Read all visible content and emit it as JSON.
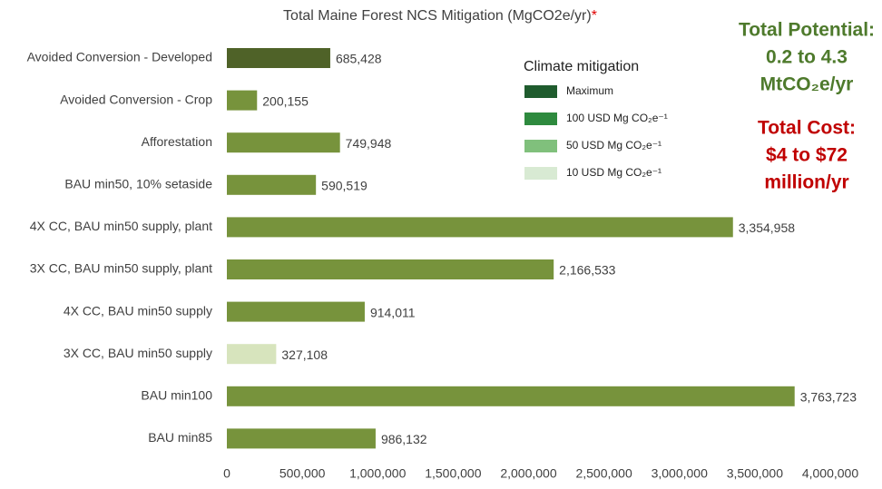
{
  "chart_data": {
    "type": "bar",
    "orientation": "horizontal",
    "title": "Total Maine Forest NCS Mitigation (MgCO2e/yr)",
    "title_mark": "*",
    "categories": [
      "Avoided Conversion - Developed",
      "Avoided Conversion - Crop",
      "Afforestation",
      "BAU min50, 10% setaside",
      "4X CC, BAU min50 supply, plant",
      "3X CC, BAU min50 supply, plant",
      "4X CC, BAU min50 supply",
      "3X CC, BAU min50 supply",
      "BAU min100",
      "BAU min85"
    ],
    "values": [
      685428,
      200155,
      749948,
      590519,
      3354958,
      2166533,
      914011,
      327108,
      3763723,
      986132
    ],
    "value_labels": [
      "685,428",
      "200,155",
      "749,948",
      "590,519",
      "3,354,958",
      "2,166,533",
      "914,011",
      "327,108",
      "3,763,723",
      "986,132"
    ],
    "colors": [
      "#4f6228",
      "#77933c",
      "#77933c",
      "#77933c",
      "#77933c",
      "#77933c",
      "#77933c",
      "#d7e4bd",
      "#77933c",
      "#77933c"
    ],
    "xlim": [
      0,
      4000000
    ],
    "xticks": [
      0,
      {
        "value": 500000,
        "label": "500,000"
      },
      {
        "value": 1000000,
        "label": "1,000,000"
      },
      {
        "value": 1500000,
        "label": "1,500,000"
      },
      {
        "value": 2000000,
        "label": "2,000,000"
      },
      {
        "value": 2500000,
        "label": "2,500,000"
      },
      {
        "value": 3000000,
        "label": "3,000,000"
      },
      {
        "value": 3500000,
        "label": "3,500,000"
      },
      {
        "value": 4000000,
        "label": "4,000,000"
      }
    ],
    "grid": false,
    "legend": {
      "title": "Climate mitigation",
      "position": "upper center",
      "items": [
        {
          "name": "Maximum",
          "color": "#1f5c2e"
        },
        {
          "name": "100 USD Mg CO₂e⁻¹",
          "color": "#2e8a3e"
        },
        {
          "name": "50 USD Mg CO₂e⁻¹",
          "color": "#80c07c"
        },
        {
          "name": "10 USD Mg CO₂e⁻¹",
          "color": "#d8ead3"
        }
      ]
    },
    "annotations": [
      {
        "lines": [
          "Total Potential:",
          "0.2 to 4.3",
          "MtCO₂e/yr"
        ],
        "color": "#4e7a2c"
      },
      {
        "lines": [
          "Total Cost:",
          "$4 to $72",
          "million/yr"
        ],
        "color": "#c00000"
      }
    ]
  }
}
